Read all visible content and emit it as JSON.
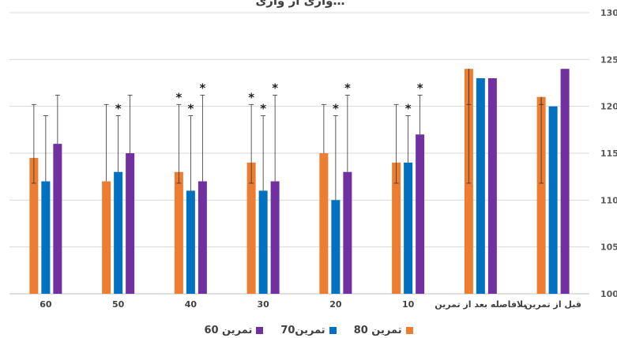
{
  "chart_data": {
    "type": "bar",
    "title": "…واری از واری",
    "categories": [
      "60",
      "50",
      "40",
      "30",
      "20",
      "10",
      "بلافاصله بعد از تمرین",
      "قبل از تمرین"
    ],
    "series": [
      {
        "name": "تمرین 80",
        "color": "#ED7D31",
        "values": [
          114.5,
          112,
          113,
          114,
          115,
          114,
          124,
          121
        ],
        "err_low": [
          111.8,
          null,
          111.8,
          111.8,
          null,
          111.8,
          111.8,
          111.8
        ],
        "err_high": [
          120.2,
          120.2,
          120.2,
          120.2,
          120.2,
          120.2,
          120.2,
          120.2
        ],
        "stars": [
          "",
          "",
          "*",
          "*",
          "",
          "",
          "",
          ""
        ]
      },
      {
        "name": "تمرین70",
        "color": "#0070C0",
        "values": [
          112,
          113,
          111,
          111,
          110,
          114,
          123,
          120
        ],
        "err_high": [
          119,
          119,
          119,
          119,
          119,
          119,
          null,
          null
        ],
        "stars": [
          "",
          "*",
          "*",
          "*",
          "*",
          "*",
          "",
          ""
        ]
      },
      {
        "name": "تمرین 60",
        "color": "#7030A0",
        "values": [
          116,
          115,
          112,
          112,
          113,
          117,
          123,
          124
        ],
        "err_high": [
          121.2,
          121.2,
          121.2,
          121.2,
          121.2,
          121.2,
          null,
          null
        ],
        "stars": [
          "",
          "",
          "*",
          "*",
          "*",
          "*",
          "",
          ""
        ]
      }
    ],
    "ylim": [
      100,
      130
    ],
    "yticks": [
      100,
      105,
      110,
      115,
      120,
      125,
      130
    ],
    "grid": true,
    "legend_position": "bottom"
  }
}
